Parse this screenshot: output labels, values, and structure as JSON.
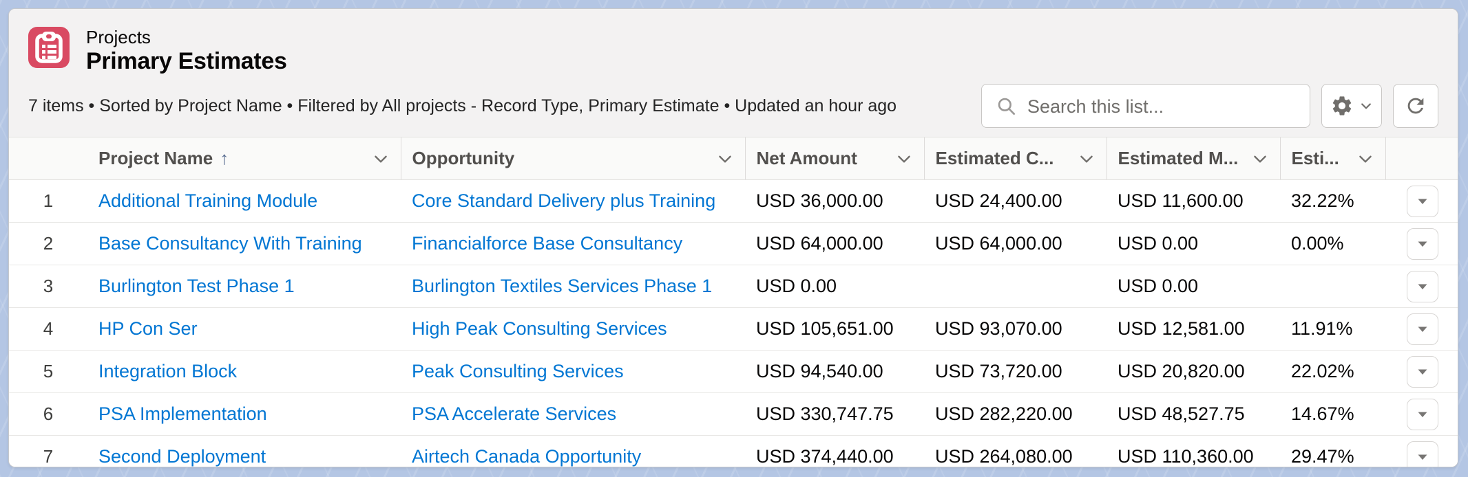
{
  "header": {
    "entity": "Projects",
    "title": "Primary Estimates",
    "summary": "7 items • Sorted by Project Name • Filtered by All projects - Record Type, Primary Estimate • Updated an hour ago",
    "search": {
      "placeholder": "Search this list..."
    }
  },
  "colors": {
    "entity_icon": "#d94a62",
    "link": "#0176d3",
    "sort_arrow": "#54698d"
  },
  "table": {
    "columns": [
      {
        "label": "Project Name",
        "field": "project",
        "type": "link",
        "sorted": "asc"
      },
      {
        "label": "Opportunity",
        "field": "opportunity",
        "type": "link"
      },
      {
        "label": "Net Amount",
        "field": "net_amount",
        "type": "text"
      },
      {
        "label": "Estimated C...",
        "field": "estimated_cost",
        "type": "text"
      },
      {
        "label": "Estimated M...",
        "field": "estimated_margin",
        "type": "text"
      },
      {
        "label": "Esti...",
        "field": "estimated_pct",
        "type": "text"
      }
    ],
    "rows": [
      {
        "num": "1",
        "project": "Additional Training Module",
        "opportunity": "Core Standard Delivery plus Training",
        "net_amount": "USD 36,000.00",
        "estimated_cost": "USD 24,400.00",
        "estimated_margin": "USD 11,600.00",
        "estimated_pct": "32.22%"
      },
      {
        "num": "2",
        "project": "Base Consultancy With Training",
        "opportunity": "Financialforce Base Consultancy",
        "net_amount": "USD 64,000.00",
        "estimated_cost": "USD 64,000.00",
        "estimated_margin": "USD 0.00",
        "estimated_pct": "0.00%"
      },
      {
        "num": "3",
        "project": "Burlington Test Phase 1",
        "opportunity": "Burlington Textiles Services Phase 1",
        "net_amount": "USD 0.00",
        "estimated_cost": "",
        "estimated_margin": "USD 0.00",
        "estimated_pct": ""
      },
      {
        "num": "4",
        "project": "HP Con Ser",
        "opportunity": "High Peak Consulting Services",
        "net_amount": "USD 105,651.00",
        "estimated_cost": "USD 93,070.00",
        "estimated_margin": "USD 12,581.00",
        "estimated_pct": "11.91%"
      },
      {
        "num": "5",
        "project": "Integration Block",
        "opportunity": "Peak Consulting Services",
        "net_amount": "USD 94,540.00",
        "estimated_cost": "USD 73,720.00",
        "estimated_margin": "USD 20,820.00",
        "estimated_pct": "22.02%"
      },
      {
        "num": "6",
        "project": "PSA Implementation",
        "opportunity": "PSA Accelerate Services",
        "net_amount": "USD 330,747.75",
        "estimated_cost": "USD 282,220.00",
        "estimated_margin": "USD 48,527.75",
        "estimated_pct": "14.67%"
      },
      {
        "num": "7",
        "project": "Second Deployment",
        "opportunity": "Airtech Canada Opportunity",
        "net_amount": "USD 374,440.00",
        "estimated_cost": "USD 264,080.00",
        "estimated_margin": "USD 110,360.00",
        "estimated_pct": "29.47%"
      }
    ]
  }
}
